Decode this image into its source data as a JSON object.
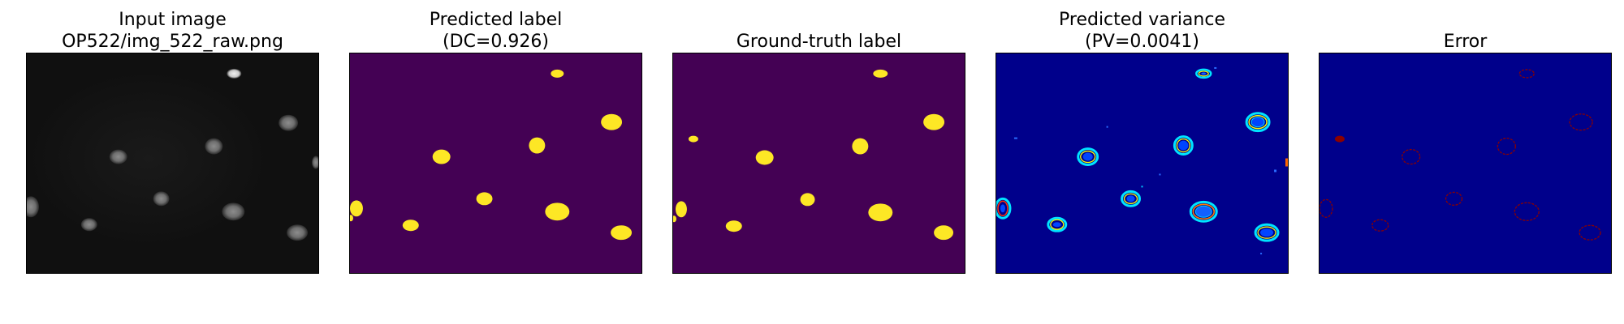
{
  "figure": {
    "panels": [
      {
        "id": "input",
        "title_lines": [
          "Input image",
          "OP522/img_522_raw.png"
        ],
        "background": "#101010",
        "image_kind": "grayscale-microscopy"
      },
      {
        "id": "predicted-label",
        "title_lines": [
          "Predicted label",
          "(DC=0.926)"
        ],
        "background": "#440154",
        "foreground": "#fde725",
        "image_kind": "binary-mask"
      },
      {
        "id": "ground-truth-label",
        "title_lines": [
          "Ground-truth label"
        ],
        "background": "#440154",
        "foreground": "#fde725",
        "image_kind": "binary-mask"
      },
      {
        "id": "predicted-variance",
        "title_lines": [
          "Predicted variance",
          "(PV=0.0041)"
        ],
        "background": "#00008b",
        "image_kind": "jet-heatmap"
      },
      {
        "id": "error",
        "title_lines": [
          "Error"
        ],
        "background": "#00008b",
        "foreground": "#8b0000",
        "image_kind": "error-map"
      }
    ]
  }
}
